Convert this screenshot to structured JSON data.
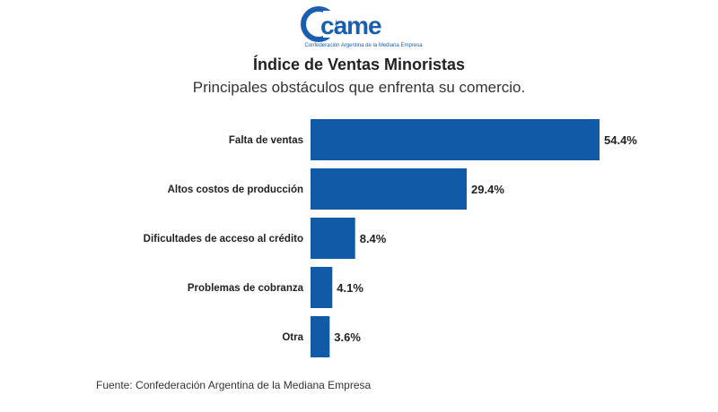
{
  "logo": {
    "text": "came",
    "caption": "Confederación Argentina de la Mediana Empresa",
    "color": "#1a5eb0"
  },
  "header": {
    "title": "Índice de Ventas Minoristas",
    "subtitle": "Principales obstáculos que enfrenta su comercio."
  },
  "chart_data": {
    "type": "bar",
    "orientation": "horizontal",
    "title": "Índice de Ventas Minoristas",
    "subtitle": "Principales obstáculos que enfrenta su comercio.",
    "categories": [
      "Falta de ventas",
      "Altos costos de producción",
      "Dificultades de acceso al crédito",
      "Problemas de cobranza",
      "Otra"
    ],
    "values": [
      54.4,
      29.4,
      8.4,
      4.1,
      3.6
    ],
    "value_labels": [
      "54.4%",
      "29.4%",
      "8.4%",
      "4.1%",
      "3.6%"
    ],
    "unit": "%",
    "xlim": [
      0,
      54.4
    ],
    "bar_color": "#115aa8",
    "grid": false
  },
  "footer": {
    "source": "Fuente: Confederación Argentina de la Mediana Empresa"
  }
}
